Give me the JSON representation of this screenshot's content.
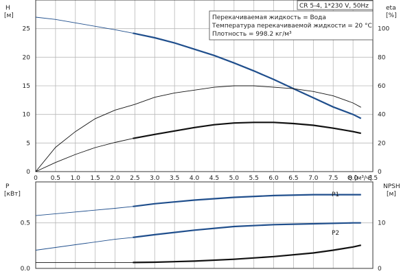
{
  "header": {
    "model": "CR 5-4, 1*230 V, 50Hz",
    "info_lines": [
      "Перекачиваемая жидкость = Вода",
      "Температура перекачиваемой жидкости = 20 °C",
      "Плотность = 998.2 кг/м³"
    ]
  },
  "colors": {
    "blue": "#1f4e8c",
    "black": "#111111",
    "grid": "#b8b8b8"
  },
  "chart_data": [
    {
      "type": "line",
      "panel": "top",
      "xlabel": "Q [м³/ч]",
      "ylabel_left": [
        "H",
        "[м]"
      ],
      "ylabel_right": [
        "eta",
        "[%]"
      ],
      "xlim": [
        0,
        8.5
      ],
      "ylim_left": [
        0,
        30
      ],
      "ylim_right": [
        0,
        120
      ],
      "xticks": [
        "0",
        "0.5",
        "1.0",
        "1.5",
        "2.0",
        "2.5",
        "3.0",
        "3.5",
        "4.0",
        "4.5",
        "5.0",
        "5.5",
        "6.0",
        "6.5",
        "7.0",
        "7.5",
        "8.0",
        "8.5"
      ],
      "yticks_left": [
        "0",
        "5",
        "10",
        "15",
        "20",
        "25"
      ],
      "yticks_right": [
        "0",
        "20",
        "40",
        "60",
        "80",
        "100"
      ],
      "grid": true,
      "series": [
        {
          "axis": "left",
          "color": "#1f4e8c",
          "x": [
            0,
            0.5,
            1.0,
            1.5,
            2.0,
            2.45,
            3.0,
            3.5,
            4.0,
            4.5,
            5.0,
            5.5,
            6.0,
            6.5,
            7.0,
            7.5,
            8.0,
            8.2
          ],
          "y": [
            27.0,
            26.6,
            26.0,
            25.4,
            24.8,
            24.2,
            23.4,
            22.5,
            21.4,
            20.3,
            19.0,
            17.6,
            16.1,
            14.5,
            12.9,
            11.3,
            10.0,
            9.3
          ],
          "solid_from": 2.45
        },
        {
          "axis": "right",
          "color": "#111111",
          "x": [
            0,
            0.5,
            1.0,
            1.5,
            2.0,
            2.5,
            3.0,
            3.5,
            4.0,
            4.5,
            5.0,
            5.5,
            6.0,
            6.5,
            7.0,
            7.5,
            8.0,
            8.2
          ],
          "y": [
            0,
            17,
            28,
            37,
            43,
            47,
            52,
            55,
            57,
            59,
            60,
            60,
            59,
            58,
            56,
            53,
            48,
            45
          ],
          "solid_from": null
        },
        {
          "axis": "left",
          "color": "#111111",
          "x": [
            0,
            0.5,
            1.0,
            1.5,
            2.0,
            2.45,
            3.0,
            3.5,
            4.0,
            4.5,
            5.0,
            5.5,
            6.0,
            6.5,
            7.0,
            7.5,
            8.0,
            8.2
          ],
          "y": [
            0,
            1.6,
            3.0,
            4.2,
            5.1,
            5.8,
            6.5,
            7.1,
            7.7,
            8.2,
            8.5,
            8.6,
            8.6,
            8.4,
            8.1,
            7.6,
            7.0,
            6.7
          ],
          "solid_from": 2.45
        }
      ]
    },
    {
      "type": "line",
      "panel": "bottom",
      "ylabel_left": [
        "P",
        "[кВт]"
      ],
      "ylabel_right": [
        "NPSH",
        "[м]"
      ],
      "xlim": [
        0,
        8.5
      ],
      "ylim_left": [
        0,
        0.95
      ],
      "ylim_right": [
        0,
        19
      ],
      "yticks_left": [
        "0.0",
        "0.5"
      ],
      "yticks_right": [
        "0",
        "10"
      ],
      "grid": true,
      "series": [
        {
          "name": "P1",
          "axis": "left",
          "color": "#1f4e8c",
          "x": [
            0,
            1.0,
            2.0,
            2.45,
            3.0,
            4.0,
            5.0,
            6.0,
            7.0,
            8.0,
            8.2
          ],
          "y": [
            0.58,
            0.62,
            0.66,
            0.68,
            0.71,
            0.75,
            0.78,
            0.8,
            0.81,
            0.81,
            0.81
          ],
          "solid_from": 2.45
        },
        {
          "name": "P2",
          "axis": "left",
          "color": "#1f4e8c",
          "x": [
            0,
            1.0,
            2.0,
            2.45,
            3.0,
            4.0,
            5.0,
            6.0,
            7.0,
            8.0,
            8.2
          ],
          "y": [
            0.2,
            0.26,
            0.32,
            0.34,
            0.37,
            0.42,
            0.46,
            0.48,
            0.49,
            0.5,
            0.5
          ],
          "solid_from": 2.45
        },
        {
          "axis": "right",
          "color": "#111111",
          "x": [
            0,
            1.0,
            2.0,
            2.45,
            3.0,
            4.0,
            5.0,
            6.0,
            7.0,
            7.5,
            8.0,
            8.2
          ],
          "y": [
            1.3,
            1.3,
            1.3,
            1.3,
            1.35,
            1.6,
            2.0,
            2.6,
            3.4,
            4.0,
            4.7,
            5.1
          ],
          "solid_from": 2.45
        }
      ]
    }
  ]
}
